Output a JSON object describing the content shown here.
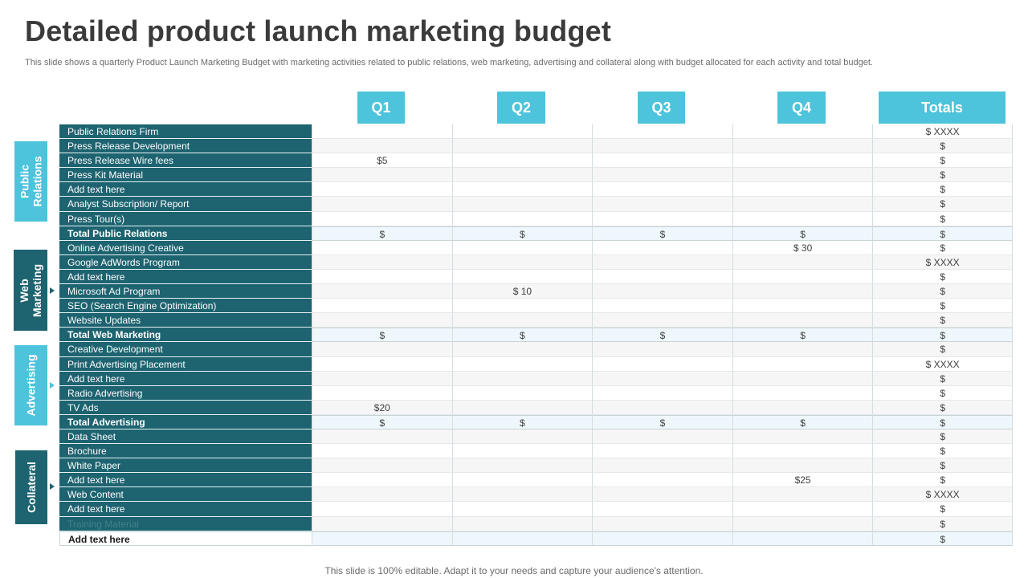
{
  "header": {
    "title": "Detailed product launch marketing budget",
    "subtitle": "This slide shows a quarterly Product Launch Marketing Budget with marketing activities related to public relations, web marketing, advertising and collateral along with budget allocated for each activity  and total budget."
  },
  "columns": {
    "q1": "Q1",
    "q2": "Q2",
    "q3": "Q3",
    "q4": "Q4",
    "totals": "Totals"
  },
  "categories": {
    "public_relations": "Public Relations",
    "web_marketing": "Web Marketing",
    "advertising": "Advertising",
    "collateral": "Collateral"
  },
  "colors": {
    "accent_light": "#4dc3dc",
    "accent_dark": "#1d6370"
  },
  "rows": [
    {
      "label": "Public Relations Firm",
      "q1": "",
      "q2": "",
      "q3": "",
      "q4": "",
      "total": "$ XXXX"
    },
    {
      "label": "Press Release Development",
      "q1": "",
      "q2": "",
      "q3": "",
      "q4": "",
      "total": "$"
    },
    {
      "label": "Press Release Wire fees",
      "q1": "$5",
      "q2": "",
      "q3": "",
      "q4": "",
      "total": "$"
    },
    {
      "label": "Press Kit Material",
      "q1": "",
      "q2": "",
      "q3": "",
      "q4": "",
      "total": "$"
    },
    {
      "label": "Add text here",
      "q1": "",
      "q2": "",
      "q3": "",
      "q4": "",
      "total": "$"
    },
    {
      "label": "Analyst Subscription/ Report",
      "q1": "",
      "q2": "",
      "q3": "",
      "q4": "",
      "total": "$"
    },
    {
      "label": "Press Tour(s)",
      "q1": "",
      "q2": "",
      "q3": "",
      "q4": "",
      "total": "$"
    },
    {
      "label": "Total Public Relations",
      "q1": "$",
      "q2": "$",
      "q3": "$",
      "q4": "$",
      "total": "$"
    },
    {
      "label": "Online Advertising Creative",
      "q1": "",
      "q2": "",
      "q3": "",
      "q4": "$ 30",
      "total": "$"
    },
    {
      "label": "Google AdWords Program",
      "q1": "",
      "q2": "",
      "q3": "",
      "q4": "",
      "total": "$ XXXX"
    },
    {
      "label": "Add text here",
      "q1": "",
      "q2": "",
      "q3": "",
      "q4": "",
      "total": "$"
    },
    {
      "label": "Microsoft Ad Program",
      "q1": "",
      "q2": "$ 10",
      "q3": "",
      "q4": "",
      "total": "$"
    },
    {
      "label": "SEO (Search Engine Optimization)",
      "q1": "",
      "q2": "",
      "q3": "",
      "q4": "",
      "total": "$"
    },
    {
      "label": "Website Updates",
      "q1": "",
      "q2": "",
      "q3": "",
      "q4": "",
      "total": "$"
    },
    {
      "label": "Total Web Marketing",
      "q1": "$",
      "q2": "$",
      "q3": "$",
      "q4": "$",
      "total": "$"
    },
    {
      "label": "Creative Development",
      "q1": "",
      "q2": "",
      "q3": "",
      "q4": "",
      "total": "$"
    },
    {
      "label": "Print Advertising Placement",
      "q1": "",
      "q2": "",
      "q3": "",
      "q4": "",
      "total": "$ XXXX"
    },
    {
      "label": "Add text here",
      "q1": "",
      "q2": "",
      "q3": "",
      "q4": "",
      "total": "$"
    },
    {
      "label": "Radio Advertising",
      "q1": "",
      "q2": "",
      "q3": "",
      "q4": "",
      "total": "$"
    },
    {
      "label": "TV  Ads",
      "q1": "$20",
      "q2": "",
      "q3": "",
      "q4": "",
      "total": "$"
    },
    {
      "label": "Total Advertising",
      "q1": "$",
      "q2": "$",
      "q3": "$",
      "q4": "$",
      "total": "$"
    },
    {
      "label": "Data Sheet",
      "q1": "",
      "q2": "",
      "q3": "",
      "q4": "",
      "total": "$"
    },
    {
      "label": "Brochure",
      "q1": "",
      "q2": "",
      "q3": "",
      "q4": "",
      "total": "$"
    },
    {
      "label": "White Paper",
      "q1": "",
      "q2": "",
      "q3": "",
      "q4": "",
      "total": "$"
    },
    {
      "label": "Add text here",
      "q1": "",
      "q2": "",
      "q3": "",
      "q4": "$25",
      "total": "$"
    },
    {
      "label": "Web Content",
      "q1": "",
      "q2": "",
      "q3": "",
      "q4": "",
      "total": "$ XXXX"
    },
    {
      "label": "Add text here",
      "q1": "",
      "q2": "",
      "q3": "",
      "q4": "",
      "total": "$"
    },
    {
      "label": "Training Material",
      "q1": "",
      "q2": "",
      "q3": "",
      "q4": "",
      "total": "$"
    },
    {
      "label": "Add  text here",
      "q1": "",
      "q2": "",
      "q3": "",
      "q4": "",
      "total": "$"
    }
  ],
  "footer": {
    "note": "This slide is 100% editable. Adapt it to your needs and capture your audience's attention."
  }
}
